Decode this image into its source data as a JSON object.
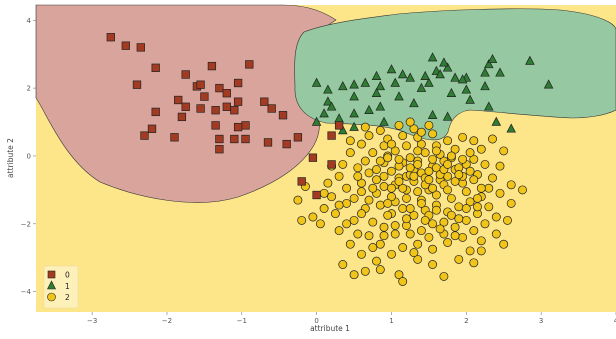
{
  "chart_data": {
    "type": "scatter",
    "title": "",
    "xlabel": "attribute 1",
    "ylabel": "attribute 2",
    "xlim": [
      -3.75,
      4.0
    ],
    "ylim": [
      -4.6,
      4.45
    ],
    "xticks": [
      -3,
      -2,
      -1,
      0,
      1,
      2,
      3,
      4
    ],
    "yticks": [
      -4,
      -2,
      0,
      2,
      4
    ],
    "grid": false,
    "legend": "bottom-left",
    "background": "#ffffff",
    "regions": [
      {
        "class": "2",
        "color": "#fde68a"
      },
      {
        "class": "0",
        "color": "#d8a49c"
      },
      {
        "class": "1",
        "color": "#96c8a2"
      }
    ],
    "series": [
      {
        "name": "0",
        "marker": "square",
        "color": "#a33b22",
        "points": [
          [
            -2.75,
            3.5
          ],
          [
            -2.55,
            3.25
          ],
          [
            -2.35,
            3.2
          ],
          [
            -2.15,
            2.6
          ],
          [
            -2.4,
            2.1
          ],
          [
            -2.15,
            1.3
          ],
          [
            -2.2,
            0.8
          ],
          [
            -2.3,
            0.6
          ],
          [
            -1.9,
            0.55
          ],
          [
            -1.85,
            1.65
          ],
          [
            -1.75,
            1.45
          ],
          [
            -1.8,
            1.15
          ],
          [
            -1.75,
            2.4
          ],
          [
            -1.6,
            2.05
          ],
          [
            -1.55,
            2.1
          ],
          [
            -1.5,
            1.75
          ],
          [
            -1.4,
            2.65
          ],
          [
            -1.3,
            2.0
          ],
          [
            -1.2,
            1.85
          ],
          [
            -1.55,
            1.4
          ],
          [
            -1.35,
            1.35
          ],
          [
            -1.2,
            1.45
          ],
          [
            -1.05,
            1.6
          ],
          [
            -1.05,
            2.15
          ],
          [
            -0.9,
            2.7
          ],
          [
            -1.35,
            0.9
          ],
          [
            -1.3,
            0.5
          ],
          [
            -1.3,
            0.2
          ],
          [
            -1.1,
            1.35
          ],
          [
            -0.7,
            1.6
          ],
          [
            -0.6,
            1.4
          ],
          [
            -0.45,
            1.2
          ],
          [
            -0.95,
            0.9
          ],
          [
            -1.05,
            0.85
          ],
          [
            -0.95,
            0.5
          ],
          [
            -1.1,
            0.5
          ],
          [
            -0.65,
            0.4
          ],
          [
            -0.4,
            0.35
          ],
          [
            -0.25,
            0.55
          ],
          [
            -0.05,
            -0.05
          ],
          [
            0.2,
            0.6
          ],
          [
            0.3,
            0.9
          ],
          [
            0.2,
            -0.25
          ],
          [
            -0.2,
            -0.75
          ],
          [
            0.0,
            -1.15
          ]
        ]
      },
      {
        "name": "1",
        "marker": "triangle",
        "color": "#2e7d32",
        "points": [
          [
            0.0,
            2.15
          ],
          [
            0.15,
            1.95
          ],
          [
            0.35,
            2.05
          ],
          [
            0.5,
            2.1
          ],
          [
            0.65,
            2.15
          ],
          [
            0.85,
            2.05
          ],
          [
            1.05,
            2.15
          ],
          [
            1.25,
            2.3
          ],
          [
            1.45,
            2.35
          ],
          [
            1.6,
            2.5
          ],
          [
            1.75,
            2.6
          ],
          [
            1.55,
            2.9
          ],
          [
            1.7,
            2.75
          ],
          [
            1.65,
            2.4
          ],
          [
            1.85,
            2.3
          ],
          [
            2.0,
            2.3
          ],
          [
            1.5,
            2.15
          ],
          [
            2.25,
            2.45
          ],
          [
            2.3,
            2.7
          ],
          [
            2.35,
            2.85
          ],
          [
            2.45,
            2.45
          ],
          [
            2.85,
            2.8
          ],
          [
            3.1,
            2.1
          ],
          [
            2.25,
            2.05
          ],
          [
            2.0,
            1.95
          ],
          [
            1.8,
            1.85
          ],
          [
            2.05,
            1.65
          ],
          [
            2.3,
            1.45
          ],
          [
            1.75,
            1.15
          ],
          [
            0.85,
            1.45
          ],
          [
            0.7,
            1.35
          ],
          [
            0.5,
            1.25
          ],
          [
            0.3,
            1.1
          ],
          [
            0.1,
            1.25
          ],
          [
            0.15,
            1.6
          ],
          [
            0.5,
            1.75
          ],
          [
            0.8,
            1.85
          ],
          [
            1.1,
            1.75
          ],
          [
            1.3,
            1.55
          ],
          [
            0.9,
            1.0
          ],
          [
            0.5,
            0.85
          ],
          [
            0.35,
            0.75
          ],
          [
            0.0,
            1.0
          ],
          [
            0.2,
            1.45
          ],
          [
            1.55,
            1.2
          ],
          [
            2.4,
            1.0
          ],
          [
            2.6,
            0.8
          ],
          [
            1.4,
            2.0
          ],
          [
            1.0,
            2.55
          ],
          [
            1.15,
            2.4
          ],
          [
            1.95,
            2.25
          ],
          [
            0.8,
            2.35
          ]
        ]
      },
      {
        "name": "2",
        "marker": "circle",
        "color": "#f0c419",
        "points": [
          [
            0.55,
            -0.35
          ],
          [
            0.65,
            -1.55
          ],
          [
            0.8,
            -0.4
          ],
          [
            0.85,
            -1.45
          ],
          [
            0.9,
            0.3
          ],
          [
            0.9,
            -0.9
          ],
          [
            0.95,
            0.0
          ],
          [
            1.05,
            -0.85
          ],
          [
            1.05,
            -1.35
          ],
          [
            1.1,
            -0.65
          ],
          [
            1.15,
            -0.2
          ],
          [
            1.2,
            -0.6
          ],
          [
            1.25,
            -0.55
          ],
          [
            1.3,
            -0.4
          ],
          [
            1.35,
            -0.15
          ],
          [
            1.4,
            -0.5
          ],
          [
            1.45,
            -0.65
          ],
          [
            1.5,
            -1.0
          ],
          [
            1.55,
            -0.3
          ],
          [
            1.6,
            -0.35
          ],
          [
            1.65,
            -0.7
          ],
          [
            1.7,
            -0.15
          ],
          [
            1.75,
            -0.6
          ],
          [
            1.8,
            -0.05
          ],
          [
            1.85,
            -0.4
          ],
          [
            1.95,
            -0.8
          ],
          [
            2.0,
            -0.25
          ],
          [
            2.15,
            -0.55
          ],
          [
            0.75,
            0.1
          ],
          [
            0.9,
            -0.2
          ],
          [
            1.1,
            -0.3
          ],
          [
            1.3,
            -0.75
          ],
          [
            1.5,
            -0.45
          ],
          [
            1.7,
            -0.85
          ],
          [
            1.9,
            -0.35
          ],
          [
            2.1,
            -0.1
          ],
          [
            0.6,
            -0.8
          ],
          [
            0.8,
            -1.1
          ],
          [
            1.0,
            -1.2
          ],
          [
            1.2,
            -1.0
          ],
          [
            1.4,
            -1.3
          ],
          [
            1.6,
            -1.15
          ],
          [
            1.8,
            -1.25
          ],
          [
            2.0,
            -1.05
          ],
          [
            0.7,
            -0.5
          ],
          [
            1.0,
            -0.45
          ],
          [
            1.25,
            -0.35
          ],
          [
            1.45,
            -0.85
          ],
          [
            1.65,
            -0.55
          ],
          [
            1.85,
            -0.75
          ],
          [
            2.05,
            -0.45
          ],
          [
            1.15,
            -0.95
          ],
          [
            1.35,
            -1.05
          ],
          [
            1.55,
            -0.95
          ],
          [
            1.75,
            -1.0
          ],
          [
            1.95,
            -0.6
          ],
          [
            0.9,
            -0.6
          ],
          [
            1.1,
            -0.75
          ],
          [
            1.3,
            -0.6
          ],
          [
            1.5,
            -0.7
          ],
          [
            1.7,
            -0.4
          ],
          [
            1.9,
            -0.55
          ],
          [
            0.85,
            -0.15
          ],
          [
            1.05,
            0.15
          ],
          [
            1.25,
            -0.05
          ],
          [
            1.45,
            0.1
          ],
          [
            1.65,
            0.05
          ],
          [
            1.85,
            0.2
          ],
          [
            2.05,
            0.1
          ],
          [
            1.2,
            0.3
          ],
          [
            1.4,
            0.35
          ],
          [
            1.6,
            0.3
          ],
          [
            0.95,
            0.5
          ],
          [
            1.15,
            0.6
          ],
          [
            1.35,
            0.55
          ],
          [
            1.55,
            0.65
          ],
          [
            1.75,
            0.45
          ],
          [
            1.3,
            0.8
          ],
          [
            1.5,
            0.9
          ],
          [
            0.7,
            0.6
          ],
          [
            0.45,
            0.1
          ],
          [
            0.35,
            -0.25
          ],
          [
            0.3,
            -0.6
          ],
          [
            0.4,
            -0.95
          ],
          [
            0.5,
            -1.25
          ],
          [
            0.6,
            -1.7
          ],
          [
            0.75,
            -1.95
          ],
          [
            0.9,
            -2.1
          ],
          [
            1.0,
            -1.7
          ],
          [
            1.15,
            -1.55
          ],
          [
            1.3,
            -1.75
          ],
          [
            1.45,
            -1.6
          ],
          [
            1.6,
            -1.45
          ],
          [
            1.75,
            -1.65
          ],
          [
            1.9,
            -1.5
          ],
          [
            2.05,
            -1.35
          ],
          [
            2.2,
            -1.2
          ],
          [
            2.3,
            -0.95
          ],
          [
            2.35,
            -0.65
          ],
          [
            2.25,
            -0.25
          ],
          [
            2.2,
            0.2
          ],
          [
            2.1,
            0.45
          ],
          [
            1.95,
            0.55
          ],
          [
            2.35,
            0.5
          ],
          [
            0.4,
            -1.4
          ],
          [
            0.5,
            -1.9
          ],
          [
            0.7,
            -2.35
          ],
          [
            0.85,
            -2.6
          ],
          [
            1.05,
            -2.3
          ],
          [
            1.2,
            -2.05
          ],
          [
            1.4,
            -2.2
          ],
          [
            1.55,
            -2.0
          ],
          [
            1.7,
            -2.3
          ],
          [
            1.85,
            -2.1
          ],
          [
            2.0,
            -1.9
          ],
          [
            2.15,
            -1.7
          ],
          [
            2.3,
            -1.5
          ],
          [
            2.45,
            -1.1
          ],
          [
            2.45,
            -0.3
          ],
          [
            2.5,
            0.15
          ],
          [
            0.25,
            -1.7
          ],
          [
            0.3,
            -2.2
          ],
          [
            0.45,
            -2.6
          ],
          [
            0.6,
            -2.9
          ],
          [
            0.8,
            -3.1
          ],
          [
            1.0,
            -2.9
          ],
          [
            1.15,
            -2.7
          ],
          [
            1.35,
            -2.6
          ],
          [
            1.55,
            -2.75
          ],
          [
            1.75,
            -2.55
          ],
          [
            1.95,
            -2.4
          ],
          [
            2.1,
            -2.2
          ],
          [
            2.25,
            -2.0
          ],
          [
            2.4,
            -1.8
          ],
          [
            0.2,
            -1.2
          ],
          [
            0.15,
            -0.8
          ],
          [
            0.2,
            -0.3
          ],
          [
            0.1,
            -1.55
          ],
          [
            0.05,
            -2.0
          ],
          [
            -0.05,
            -1.8
          ],
          [
            -0.2,
            -1.9
          ],
          [
            -0.25,
            -1.3
          ],
          [
            -0.15,
            -0.9
          ],
          [
            0.1,
            -1.1
          ],
          [
            0.35,
            -3.2
          ],
          [
            0.5,
            -3.5
          ],
          [
            0.65,
            -3.4
          ],
          [
            0.85,
            -3.35
          ],
          [
            1.1,
            -3.5
          ],
          [
            1.15,
            -3.7
          ],
          [
            1.35,
            -3.05
          ],
          [
            1.55,
            -3.2
          ],
          [
            1.7,
            -3.55
          ],
          [
            1.9,
            -3.05
          ],
          [
            2.05,
            -2.8
          ],
          [
            2.2,
            -2.5
          ],
          [
            2.4,
            -2.3
          ],
          [
            2.55,
            -1.9
          ],
          [
            2.6,
            -1.4
          ],
          [
            2.6,
            -0.85
          ],
          [
            2.75,
            -1.0
          ],
          [
            2.2,
            -2.8
          ],
          [
            2.5,
            -2.6
          ],
          [
            2.1,
            -3.15
          ],
          [
            0.95,
            -0.05
          ],
          [
            1.1,
            -0.1
          ],
          [
            1.35,
            -0.25
          ],
          [
            1.55,
            -0.1
          ],
          [
            1.75,
            -0.25
          ],
          [
            1.95,
            -0.1
          ],
          [
            0.8,
            -0.7
          ],
          [
            1.0,
            -0.95
          ],
          [
            1.2,
            -1.25
          ],
          [
            1.4,
            -1.4
          ],
          [
            1.6,
            -1.6
          ],
          [
            1.8,
            -1.75
          ],
          [
            0.65,
            -0.15
          ],
          [
            0.75,
            -0.95
          ],
          [
            0.95,
            -1.4
          ],
          [
            1.25,
            -1.55
          ],
          [
            1.5,
            -1.75
          ],
          [
            1.7,
            -1.95
          ],
          [
            1.9,
            -1.85
          ],
          [
            2.15,
            -1.5
          ],
          [
            0.55,
            -0.6
          ],
          [
            0.6,
            -1.05
          ],
          [
            0.7,
            -1.3
          ],
          [
            0.95,
            -1.75
          ],
          [
            1.2,
            -1.85
          ],
          [
            1.45,
            -1.9
          ],
          [
            1.65,
            -2.15
          ],
          [
            1.85,
            -2.35
          ],
          [
            2.1,
            -0.7
          ],
          [
            2.2,
            -0.95
          ],
          [
            2.15,
            -1.25
          ],
          [
            2.0,
            -1.55
          ],
          [
            1.35,
            0.15
          ],
          [
            1.6,
            0.15
          ],
          [
            1.8,
            0.0
          ],
          [
            1.0,
            0.35
          ],
          [
            0.85,
            0.75
          ],
          [
            1.1,
            0.9
          ],
          [
            1.25,
            1.0
          ],
          [
            1.4,
            0.7
          ],
          [
            0.6,
            0.35
          ],
          [
            0.45,
            0.45
          ],
          [
            0.65,
            0.85
          ],
          [
            1.05,
            -2.05
          ],
          [
            0.9,
            -2.35
          ],
          [
            1.25,
            -2.3
          ],
          [
            1.5,
            -2.4
          ],
          [
            1.3,
            -2.85
          ],
          [
            0.75,
            -2.7
          ],
          [
            0.55,
            -2.3
          ],
          [
            0.4,
            -2.0
          ],
          [
            0.3,
            -1.45
          ]
        ]
      }
    ]
  }
}
